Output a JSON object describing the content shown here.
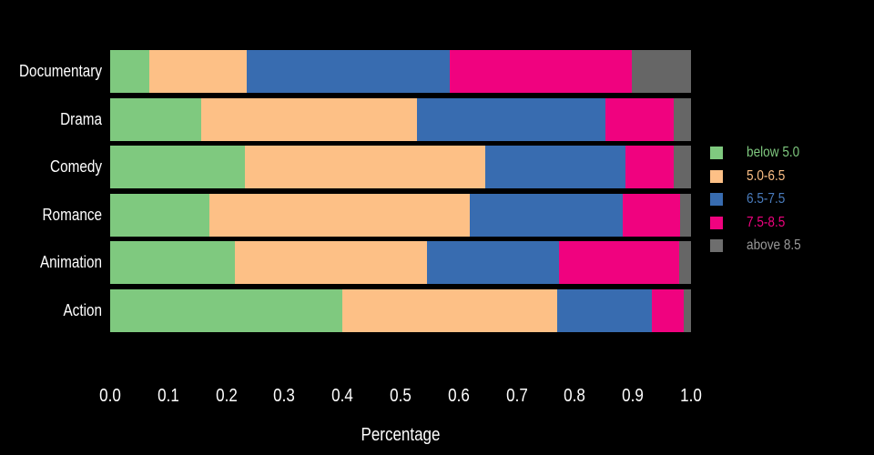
{
  "chart_data": {
    "type": "bar",
    "orientation": "horizontal",
    "stacked": true,
    "background_color": "#000000",
    "text_color": "#ffffff",
    "xlabel": "Percentage",
    "ylabel": "",
    "xlim": [
      0.0,
      1.0
    ],
    "grid": false,
    "x_ticks": [
      "0.0",
      "0.1",
      "0.2",
      "0.3",
      "0.4",
      "0.5",
      "0.6",
      "0.7",
      "0.8",
      "0.9",
      "1.0"
    ],
    "categories": [
      "Documentary",
      "Drama",
      "Comedy",
      "Romance",
      "Animation",
      "Action"
    ],
    "series": [
      {
        "name": "below 5.0",
        "color": "#7fc97f",
        "values": [
          0.068,
          0.156,
          0.232,
          0.171,
          0.215,
          0.4
        ]
      },
      {
        "name": "5.0-6.5",
        "color": "#fdc086",
        "values": [
          0.167,
          0.372,
          0.414,
          0.448,
          0.33,
          0.37
        ]
      },
      {
        "name": "6.5-7.5",
        "color": "#386cb0",
        "values": [
          0.35,
          0.325,
          0.241,
          0.264,
          0.227,
          0.163
        ]
      },
      {
        "name": "7.5-8.5",
        "color": "#f0027f",
        "values": [
          0.313,
          0.118,
          0.084,
          0.098,
          0.207,
          0.054
        ]
      },
      {
        "name": "above 8.5",
        "color": "#666666",
        "values": [
          0.102,
          0.029,
          0.029,
          0.019,
          0.021,
          0.013
        ]
      }
    ],
    "legend": {
      "position": "right",
      "items": [
        {
          "label": "below 5.0",
          "swatch_color": "#7fc97f",
          "text_color": "#7fc97f"
        },
        {
          "label": "5.0-6.5",
          "swatch_color": "#fdc086",
          "text_color": "#fdc086"
        },
        {
          "label": "6.5-7.5",
          "swatch_color": "#386cb0",
          "text_color": "#4a7cbd"
        },
        {
          "label": "7.5-8.5",
          "swatch_color": "#f0027f",
          "text_color": "#f0027f"
        },
        {
          "label": "above 8.5",
          "swatch_color": "#6e6e6e",
          "text_color": "#999999"
        }
      ]
    }
  }
}
